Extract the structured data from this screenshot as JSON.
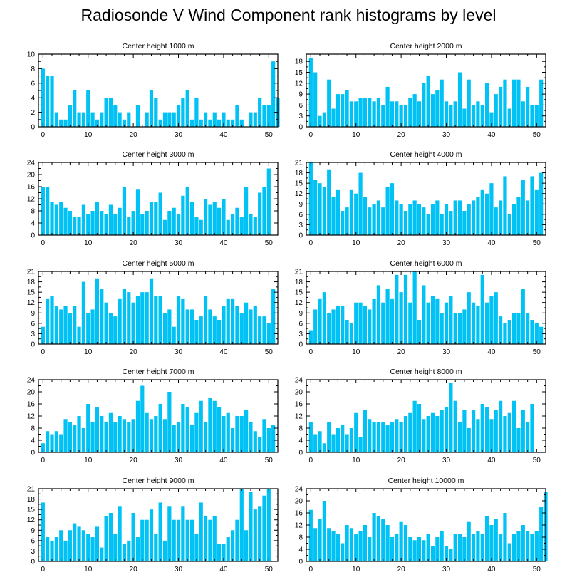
{
  "title": "Radiosonde V Wind Component rank histograms by level",
  "colors": {
    "bar": "#00c2f4",
    "axis": "#000000"
  },
  "chart_data": [
    {
      "type": "bar",
      "title": "Center height 1000 m",
      "xlim": [
        -1,
        52
      ],
      "ylim": [
        0,
        10
      ],
      "yticks": [
        0,
        2,
        4,
        6,
        8,
        10
      ],
      "xticks": [
        0,
        10,
        20,
        30,
        40,
        50
      ],
      "values": [
        8,
        7,
        7,
        2,
        1,
        1,
        3,
        5,
        2,
        2,
        5,
        2,
        1,
        2,
        4,
        4,
        3,
        2,
        1,
        2,
        0,
        3,
        0,
        2,
        5,
        4,
        1,
        2,
        2,
        2,
        3,
        4,
        5,
        1,
        4,
        1,
        2,
        1,
        2,
        1,
        2,
        1,
        1,
        3,
        1,
        0,
        2,
        2,
        4,
        3,
        3,
        9,
        4
      ]
    },
    {
      "type": "bar",
      "title": "Center height 2000 m",
      "xlim": [
        -1,
        52
      ],
      "ylim": [
        0,
        20
      ],
      "yticks": [
        0,
        3,
        6,
        9,
        12,
        15,
        18
      ],
      "xticks": [
        0,
        10,
        20,
        30,
        40,
        50
      ],
      "values": [
        19,
        15,
        3,
        4,
        13,
        5,
        9,
        9,
        10,
        7,
        7,
        8,
        8,
        8,
        7,
        8,
        6,
        11,
        7,
        7,
        6,
        6,
        8,
        9,
        7,
        12,
        14,
        9,
        10,
        13,
        7,
        6,
        7,
        15,
        5,
        13,
        6,
        7,
        6,
        12,
        4,
        9,
        11,
        13,
        5,
        13,
        13,
        7,
        11,
        6,
        6,
        13
      ]
    },
    {
      "type": "bar",
      "title": "Center height 3000 m",
      "xlim": [
        -1,
        52
      ],
      "ylim": [
        0,
        24
      ],
      "yticks": [
        0,
        4,
        8,
        12,
        16,
        20,
        24
      ],
      "xticks": [
        0,
        10,
        20,
        30,
        40,
        50
      ],
      "values": [
        16,
        16,
        11,
        10,
        11,
        9,
        8,
        6,
        6,
        10,
        7,
        8,
        11,
        8,
        7,
        10,
        7,
        9,
        16,
        6,
        8,
        15,
        7,
        8,
        11,
        11,
        14,
        5,
        8,
        9,
        7,
        13,
        16,
        11,
        6,
        5,
        12,
        10,
        11,
        9,
        12,
        5,
        7,
        9,
        6,
        16,
        7,
        6,
        14,
        16,
        22
      ]
    },
    {
      "type": "bar",
      "title": "Center height 4000 m",
      "xlim": [
        -1,
        52
      ],
      "ylim": [
        0,
        21
      ],
      "yticks": [
        0,
        3,
        6,
        9,
        12,
        15,
        18,
        21
      ],
      "xticks": [
        0,
        10,
        20,
        30,
        40,
        50
      ],
      "values": [
        21,
        16,
        15,
        14,
        19,
        11,
        13,
        7,
        8,
        13,
        12,
        18,
        11,
        8,
        9,
        10,
        8,
        14,
        15,
        10,
        9,
        7,
        9,
        10,
        9,
        8,
        6,
        9,
        10,
        6,
        9,
        7,
        10,
        10,
        7,
        9,
        10,
        11,
        13,
        12,
        15,
        8,
        10,
        17,
        6,
        9,
        11,
        16,
        10,
        17,
        13,
        18
      ]
    },
    {
      "type": "bar",
      "title": "Center height 5000 m",
      "xlim": [
        -1,
        52
      ],
      "ylim": [
        0,
        21
      ],
      "yticks": [
        0,
        3,
        6,
        9,
        12,
        15,
        18,
        21
      ],
      "xticks": [
        0,
        10,
        20,
        30,
        40,
        50
      ],
      "values": [
        5,
        13,
        14,
        11,
        10,
        11,
        9,
        11,
        5,
        18,
        9,
        10,
        19,
        16,
        12,
        9,
        8,
        13,
        16,
        15,
        12,
        14,
        15,
        15,
        19,
        14,
        14,
        9,
        10,
        5,
        14,
        13,
        10,
        10,
        7,
        8,
        14,
        10,
        8,
        7,
        11,
        13,
        13,
        11,
        9,
        12,
        10,
        11,
        8,
        8,
        6,
        16
      ]
    },
    {
      "type": "bar",
      "title": "Center height 6000 m",
      "xlim": [
        -1,
        52
      ],
      "ylim": [
        0,
        21
      ],
      "yticks": [
        0,
        3,
        6,
        9,
        12,
        15,
        18,
        21
      ],
      "xticks": [
        0,
        10,
        20,
        30,
        40,
        50
      ],
      "values": [
        4,
        10,
        13,
        15,
        9,
        10,
        11,
        11,
        7,
        6,
        12,
        12,
        11,
        10,
        13,
        17,
        12,
        16,
        13,
        20,
        15,
        20,
        12,
        21,
        7,
        17,
        12,
        14,
        13,
        9,
        12,
        14,
        9,
        9,
        10,
        15,
        12,
        11,
        20,
        12,
        14,
        15,
        8,
        6,
        7,
        9,
        9,
        16,
        9,
        7,
        6,
        5
      ]
    },
    {
      "type": "bar",
      "title": "Center height 7000 m",
      "xlim": [
        -1,
        52
      ],
      "ylim": [
        0,
        24
      ],
      "yticks": [
        0,
        4,
        8,
        12,
        16,
        20,
        24
      ],
      "xticks": [
        0,
        10,
        20,
        30,
        40,
        50
      ],
      "values": [
        3,
        7,
        6,
        7,
        6,
        11,
        10,
        9,
        12,
        8,
        16,
        10,
        15,
        12,
        10,
        13,
        10,
        12,
        11,
        10,
        11,
        17,
        22,
        13,
        11,
        12,
        16,
        11,
        20,
        9,
        10,
        16,
        15,
        9,
        13,
        17,
        10,
        18,
        17,
        15,
        12,
        13,
        8,
        12,
        12,
        14,
        10,
        7,
        5,
        11,
        8,
        9
      ]
    },
    {
      "type": "bar",
      "title": "Center height 8000 m",
      "xlim": [
        -1,
        52
      ],
      "ylim": [
        0,
        24
      ],
      "yticks": [
        0,
        4,
        8,
        12,
        16,
        20,
        24
      ],
      "xticks": [
        0,
        10,
        20,
        30,
        40,
        50
      ],
      "values": [
        10,
        6,
        7,
        3,
        10,
        6,
        8,
        9,
        6,
        8,
        13,
        5,
        14,
        11,
        10,
        10,
        10,
        9,
        10,
        11,
        10,
        12,
        13,
        17,
        16,
        11,
        12,
        13,
        12,
        14,
        15,
        23,
        17,
        10,
        14,
        8,
        14,
        11,
        16,
        15,
        11,
        14,
        17,
        12,
        13,
        17,
        8,
        14,
        10,
        16
      ]
    },
    {
      "type": "bar",
      "title": "Center height 9000 m",
      "xlim": [
        -1,
        52
      ],
      "ylim": [
        0,
        21
      ],
      "yticks": [
        0,
        3,
        6,
        9,
        12,
        15,
        18,
        21
      ],
      "xticks": [
        0,
        10,
        20,
        30,
        40,
        50
      ],
      "values": [
        17,
        7,
        6,
        7,
        9,
        6,
        9,
        11,
        10,
        9,
        8,
        7,
        10,
        4,
        13,
        14,
        8,
        16,
        5,
        6,
        14,
        7,
        12,
        12,
        15,
        8,
        17,
        6,
        16,
        12,
        12,
        16,
        12,
        12,
        8,
        17,
        13,
        12,
        13,
        5,
        5,
        7,
        9,
        12,
        21,
        9,
        20,
        15,
        16,
        19,
        21
      ]
    },
    {
      "type": "bar",
      "title": "Center height 10000 m",
      "xlim": [
        -1,
        52
      ],
      "ylim": [
        0,
        24
      ],
      "yticks": [
        0,
        4,
        8,
        12,
        16,
        20,
        24
      ],
      "xticks": [
        0,
        10,
        20,
        30,
        40,
        50
      ],
      "values": [
        17,
        11,
        14,
        20,
        11,
        10,
        9,
        6,
        12,
        11,
        9,
        10,
        12,
        8,
        16,
        15,
        14,
        12,
        8,
        9,
        13,
        12,
        8,
        7,
        8,
        7,
        9,
        5,
        8,
        10,
        5,
        4,
        9,
        9,
        8,
        13,
        9,
        10,
        9,
        15,
        12,
        14,
        9,
        16,
        6,
        9,
        10,
        12,
        10,
        9,
        10,
        18,
        23
      ]
    }
  ]
}
